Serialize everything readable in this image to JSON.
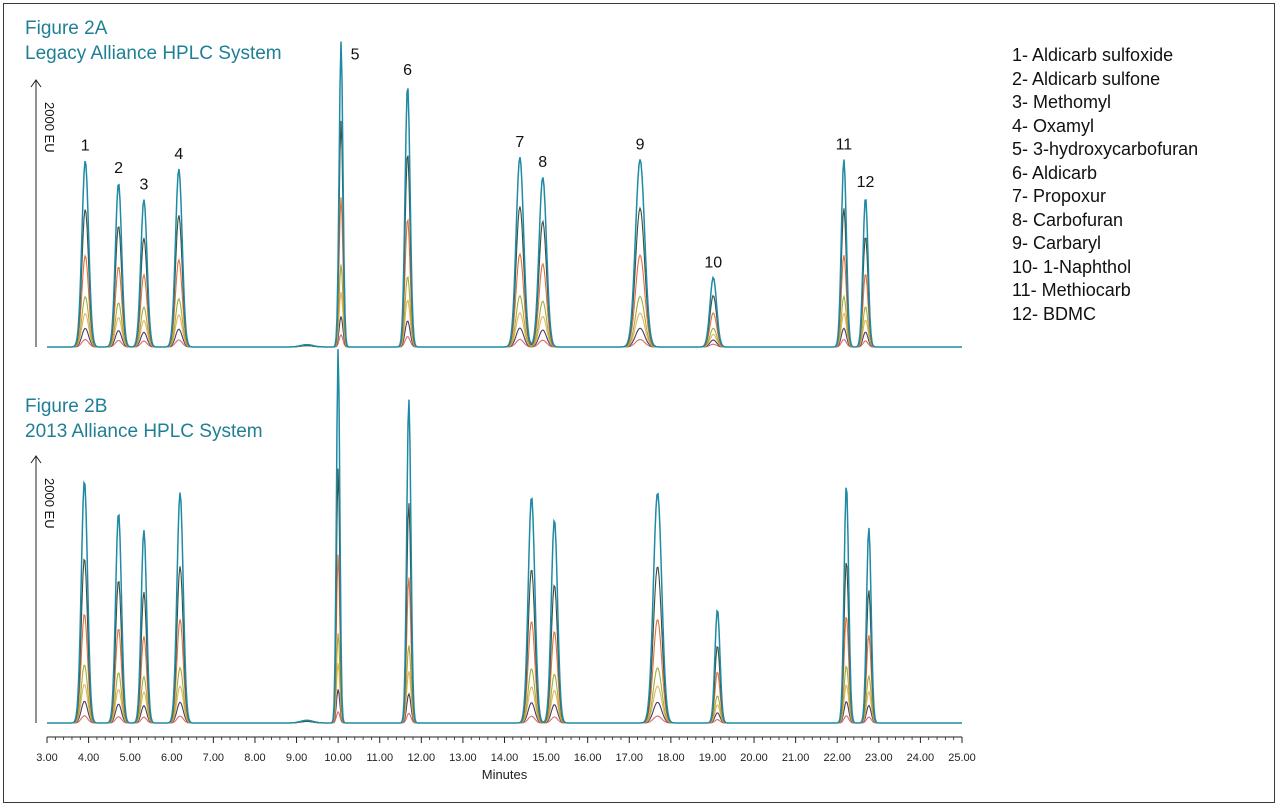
{
  "figure_a": {
    "title_line1": "Figure 2A",
    "title_line2": "Legacy Alliance HPLC System",
    "ylabel": "2000 EU"
  },
  "figure_b": {
    "title_line1": "Figure 2B",
    "title_line2": "2013 Alliance HPLC System",
    "ylabel": "2000 EU"
  },
  "legend": [
    "1- Aldicarb sulfoxide",
    "2- Aldicarb sulfone",
    "3- Methomyl",
    "4- Oxamyl",
    "5- 3-hydroxycarbofuran",
    "6- Aldicarb",
    "7- Propoxur",
    "8- Carbofuran",
    "9- Carbaryl",
    "10- 1-Naphthol",
    "11- Methiocarb",
    "12- BDMC"
  ],
  "colors": {
    "title": "#1f7f95",
    "series": [
      "#1f8aa6",
      "#3c4e3d",
      "#e0703a",
      "#9bb23a",
      "#e6b45a",
      "#4a3a6a",
      "#d96a6a"
    ]
  },
  "chart_data": [
    {
      "type": "line",
      "title": "Figure 2A Legacy Alliance HPLC System",
      "xlabel": "Minutes",
      "ylabel": "2000 EU",
      "xlim": [
        3.0,
        25.0
      ],
      "ylim": [
        0,
        2500
      ],
      "x_ticks": [
        "3.00",
        "4.00",
        "5.00",
        "6.00",
        "7.00",
        "8.00",
        "9.00",
        "10.00",
        "11.00",
        "12.00",
        "13.00",
        "14.00",
        "15.00",
        "16.00",
        "17.00",
        "18.00",
        "19.00",
        "20.00",
        "21.00",
        "22.00",
        "23.00",
        "24.00",
        "25.00"
      ],
      "series_scale": [
        1.0,
        0.74,
        0.49,
        0.27,
        0.18,
        0.1,
        0.04
      ],
      "peaks": [
        {
          "label": "1",
          "rt": 3.92,
          "height": 1580,
          "sigma": 0.08
        },
        {
          "label": "2",
          "rt": 4.72,
          "height": 1390,
          "sigma": 0.075
        },
        {
          "label": "3",
          "rt": 5.33,
          "height": 1250,
          "sigma": 0.075
        },
        {
          "label": "4",
          "rt": 6.17,
          "height": 1510,
          "sigma": 0.08
        },
        {
          "label": "5",
          "rt": 10.07,
          "height": 2590,
          "sigma": 0.045
        },
        {
          "label": "6",
          "rt": 11.67,
          "height": 2220,
          "sigma": 0.06
        },
        {
          "label": "7",
          "rt": 14.37,
          "height": 1610,
          "sigma": 0.09
        },
        {
          "label": "8",
          "rt": 14.92,
          "height": 1440,
          "sigma": 0.09
        },
        {
          "label": "9",
          "rt": 17.26,
          "height": 1590,
          "sigma": 0.11
        },
        {
          "label": "10",
          "rt": 19.02,
          "height": 590,
          "sigma": 0.08
        },
        {
          "label": "11",
          "rt": 22.16,
          "height": 1590,
          "sigma": 0.06
        },
        {
          "label": "12",
          "rt": 22.68,
          "height": 1270,
          "sigma": 0.06
        }
      ]
    },
    {
      "type": "line",
      "title": "Figure 2B 2013 Alliance HPLC System",
      "xlabel": "Minutes",
      "ylabel": "2000 EU",
      "xlim": [
        3.0,
        25.0
      ],
      "ylim": [
        0,
        2500
      ],
      "x_ticks": [
        "3.00",
        "4.00",
        "5.00",
        "6.00",
        "7.00",
        "8.00",
        "9.00",
        "10.00",
        "11.00",
        "12.00",
        "13.00",
        "14.00",
        "15.00",
        "16.00",
        "17.00",
        "18.00",
        "19.00",
        "20.00",
        "21.00",
        "22.00",
        "23.00",
        "24.00",
        "25.00"
      ],
      "series_scale": [
        1.0,
        0.68,
        0.45,
        0.24,
        0.16,
        0.09,
        0.03
      ],
      "peaks": [
        {
          "label": "1",
          "rt": 3.9,
          "height": 1810,
          "sigma": 0.075
        },
        {
          "label": "2",
          "rt": 4.72,
          "height": 1570,
          "sigma": 0.07
        },
        {
          "label": "3",
          "rt": 5.33,
          "height": 1440,
          "sigma": 0.065
        },
        {
          "label": "4",
          "rt": 6.2,
          "height": 1720,
          "sigma": 0.075
        },
        {
          "label": "5",
          "rt": 10.0,
          "height": 2800,
          "sigma": 0.04
        },
        {
          "label": "6",
          "rt": 11.7,
          "height": 2420,
          "sigma": 0.05
        },
        {
          "label": "7",
          "rt": 14.65,
          "height": 1690,
          "sigma": 0.08
        },
        {
          "label": "8",
          "rt": 15.2,
          "height": 1520,
          "sigma": 0.075
        },
        {
          "label": "9",
          "rt": 17.68,
          "height": 1720,
          "sigma": 0.1
        },
        {
          "label": "10",
          "rt": 19.12,
          "height": 850,
          "sigma": 0.06
        },
        {
          "label": "11",
          "rt": 22.22,
          "height": 1780,
          "sigma": 0.055
        },
        {
          "label": "12",
          "rt": 22.76,
          "height": 1460,
          "sigma": 0.055
        }
      ]
    }
  ]
}
